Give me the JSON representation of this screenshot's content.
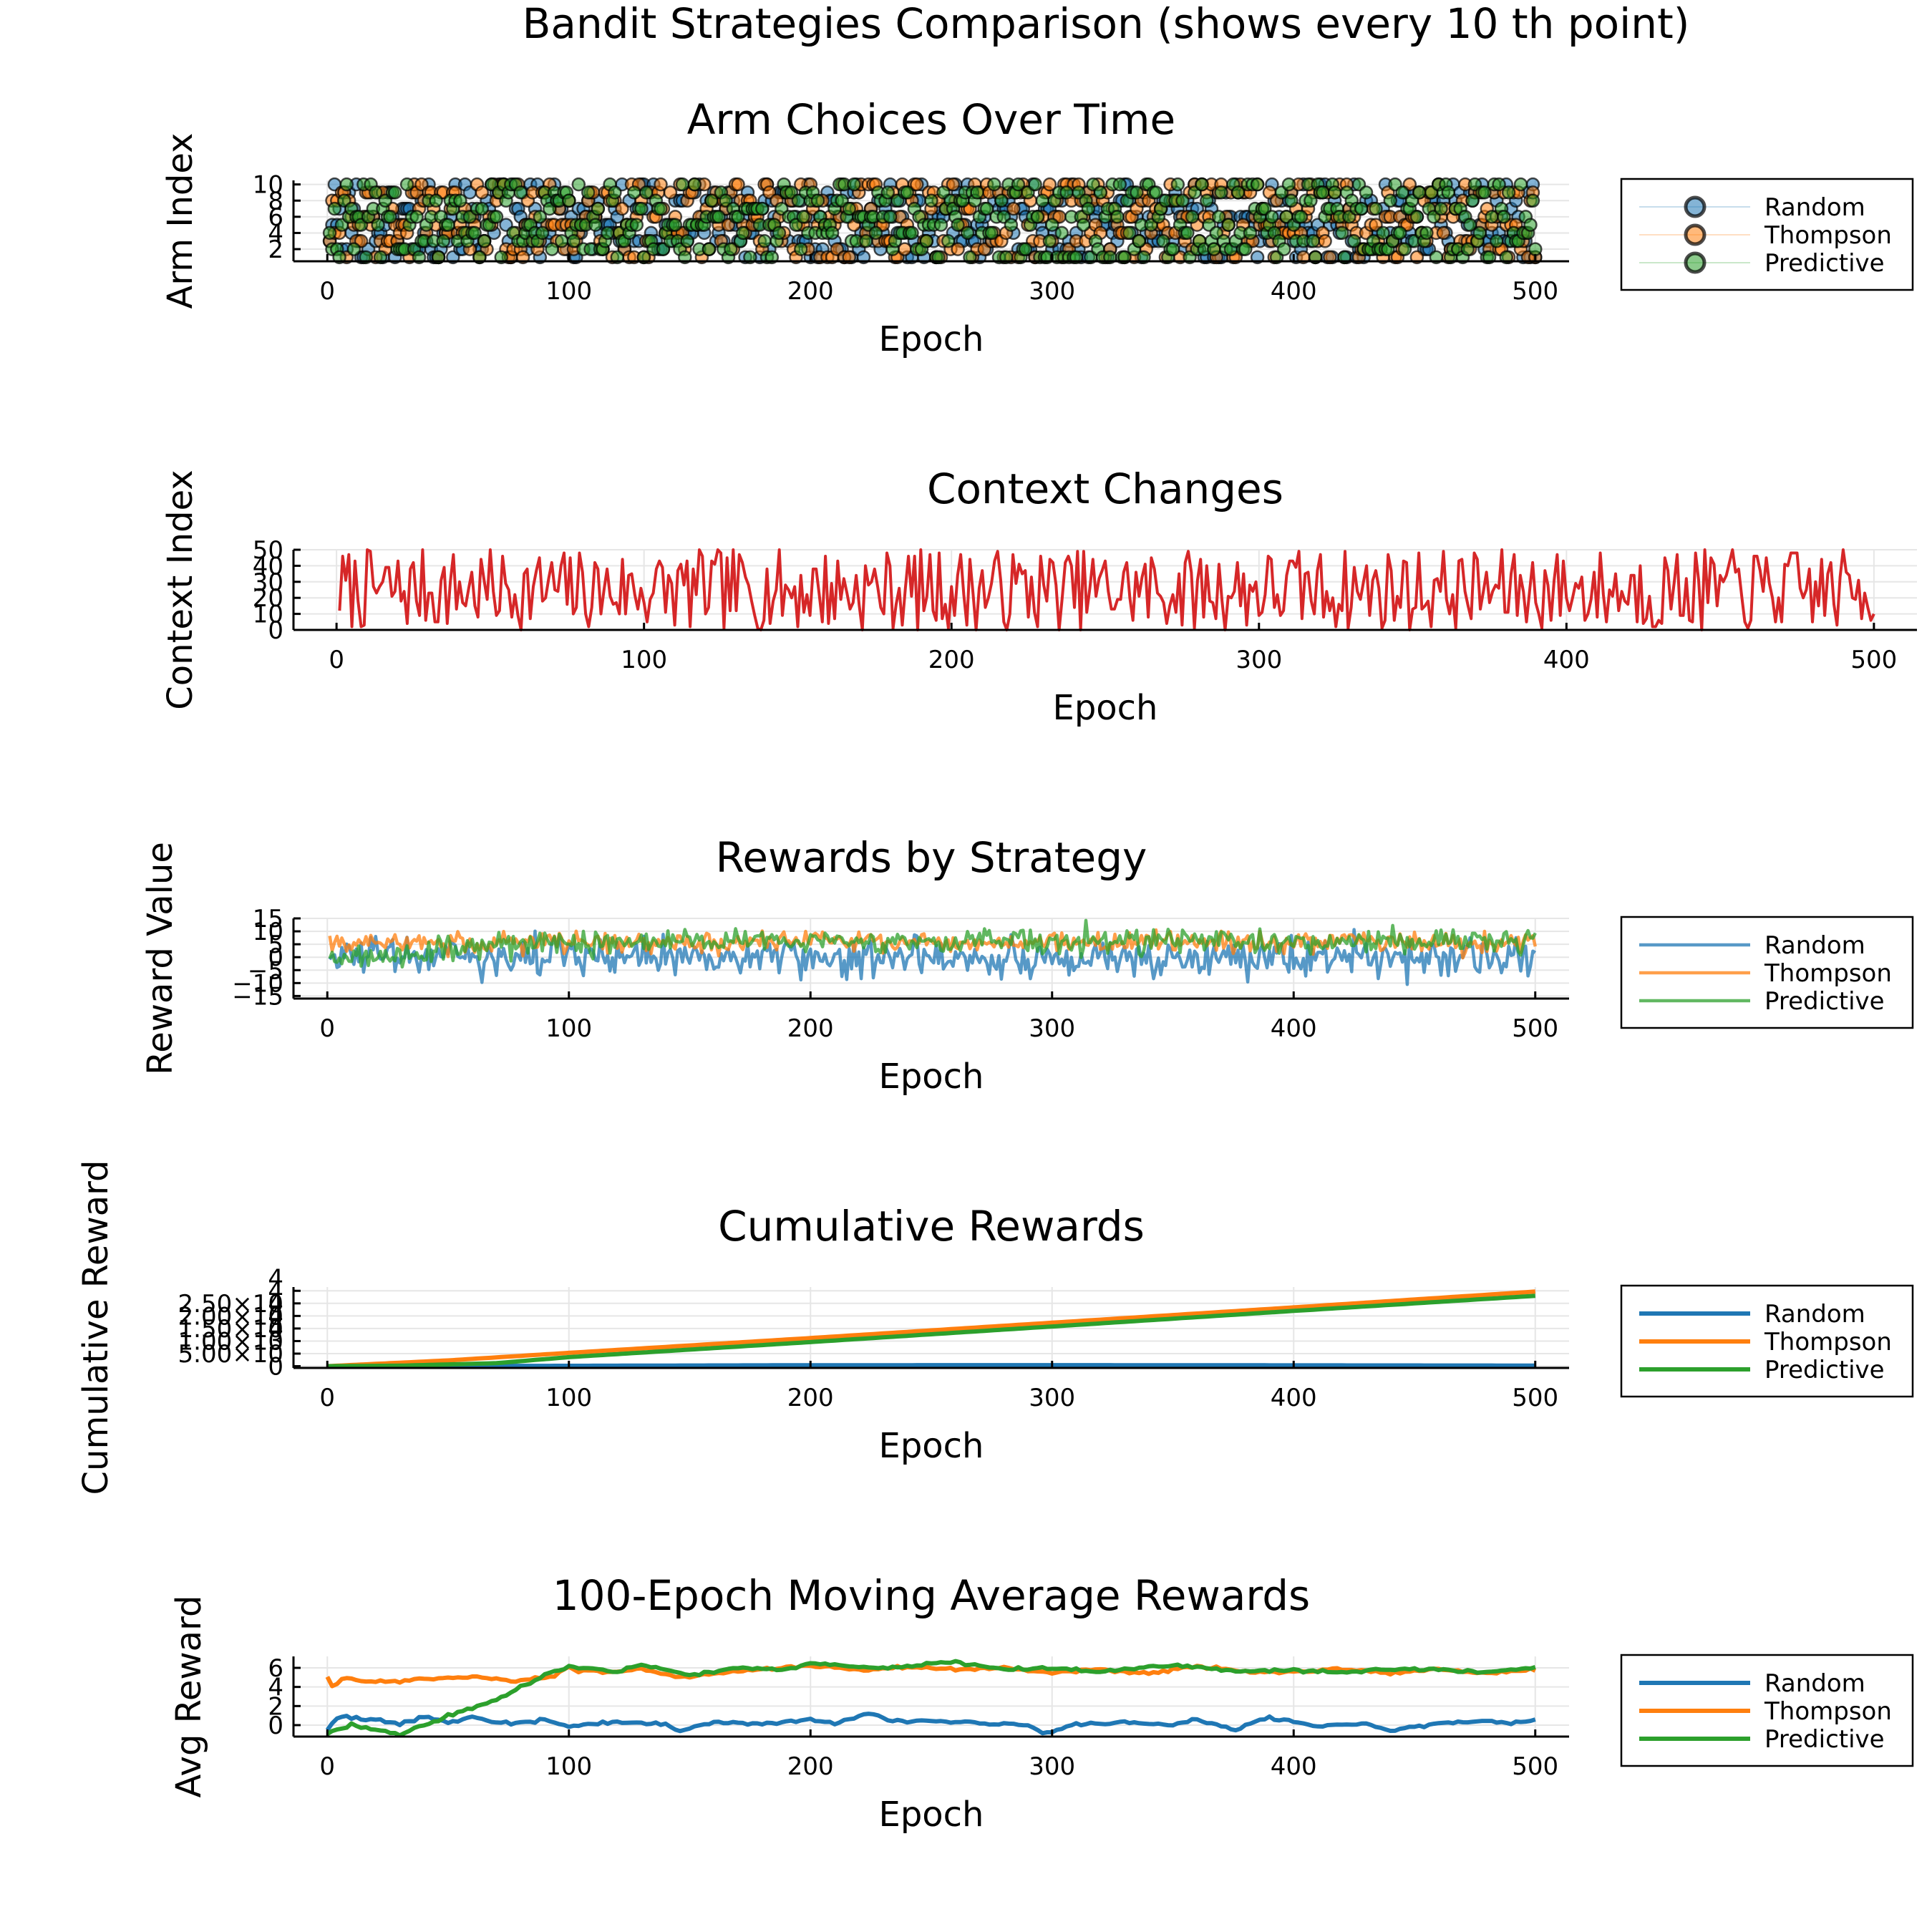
{
  "figure_title": "Bandit Strategies Comparison (shows every 10 th point)",
  "colors": {
    "random": "#1f77b4",
    "thompson": "#ff7f0e",
    "predictive": "#2ca02c",
    "context": "#d62728"
  },
  "chart_data": [
    {
      "id": "arms",
      "type": "scatter",
      "title": "Arm Choices Over Time",
      "xlabel": "Epoch",
      "ylabel": "Arm Index",
      "xlim": [
        -14,
        514
      ],
      "ylim": [
        0.5,
        10.5
      ],
      "xticks": [
        0,
        100,
        200,
        300,
        400,
        500
      ],
      "yticks": [
        2,
        4,
        6,
        8,
        10
      ],
      "grid": true,
      "legend": "outside-right",
      "series": [
        {
          "name": "Random",
          "color": "#1f77b4"
        },
        {
          "name": "Thompson",
          "color": "#ff7f0e"
        },
        {
          "name": "Predictive",
          "color": "#2ca02c"
        }
      ]
    },
    {
      "id": "context",
      "type": "line",
      "title": "Context Changes",
      "xlabel": "Epoch",
      "ylabel": "Context Index",
      "xlim": [
        -14,
        514
      ],
      "ylim": [
        0,
        50
      ],
      "xticks": [
        0,
        100,
        200,
        300,
        400,
        500
      ],
      "yticks": [
        0,
        10,
        20,
        30,
        40,
        50
      ],
      "grid": true,
      "legend": "none"
    },
    {
      "id": "rewards",
      "type": "line",
      "title": "Rewards by Strategy",
      "xlabel": "Epoch",
      "ylabel": "Reward Value",
      "xlim": [
        -14,
        514
      ],
      "ylim": [
        -16,
        15
      ],
      "xticks": [
        0,
        100,
        200,
        300,
        400,
        500
      ],
      "ytick_labels": [
        "15",
        "10",
        "5",
        "0",
        "−5",
        "−10",
        "−15"
      ],
      "yticks": [
        15,
        10,
        5,
        0,
        -5,
        -10,
        -15
      ],
      "grid": true,
      "legend": "outside-right",
      "series": [
        {
          "name": "Random",
          "color": "#1f77b4"
        },
        {
          "name": "Thompson",
          "color": "#ff7f0e"
        },
        {
          "name": "Predictive",
          "color": "#2ca02c"
        }
      ]
    },
    {
      "id": "cumulative",
      "type": "line",
      "title": "Cumulative Rewards",
      "xlabel": "Epoch",
      "ylabel": "Cumulative Reward",
      "xlim": [
        -14,
        514
      ],
      "ylim": [
        -700,
        31500
      ],
      "xticks": [
        0,
        100,
        200,
        300,
        400,
        500
      ],
      "yticks": [
        0,
        5000,
        10000,
        15000,
        20000,
        25000,
        30000
      ],
      "ytick_labels": [
        "0",
        "5.00×10",
        "1.00×10",
        "1.50×10",
        "2.00×10",
        "2.50×10",
        ""
      ],
      "ytick_exponents": [
        "",
        "3",
        "4",
        "4",
        "4",
        "4",
        "4"
      ],
      "grid": true,
      "legend": "outside-right",
      "series": [
        {
          "name": "Random",
          "color": "#1f77b4",
          "points": [
            [
              0,
              0
            ],
            [
              100,
              150
            ],
            [
              200,
              380
            ],
            [
              300,
              420
            ],
            [
              400,
              330
            ],
            [
              500,
              240
            ]
          ]
        },
        {
          "name": "Thompson",
          "color": "#ff7f0e",
          "points": [
            [
              0,
              0
            ],
            [
              50,
              2300
            ],
            [
              100,
              5300
            ],
            [
              200,
              11200
            ],
            [
              300,
              17300
            ],
            [
              400,
              23400
            ],
            [
              500,
              29700
            ]
          ]
        },
        {
          "name": "Predictive",
          "color": "#2ca02c",
          "points": [
            [
              0,
              0
            ],
            [
              30,
              200
            ],
            [
              70,
              1200
            ],
            [
              100,
              3600
            ],
            [
              200,
              9600
            ],
            [
              300,
              15800
            ],
            [
              400,
              22000
            ],
            [
              500,
              28000
            ]
          ]
        }
      ]
    },
    {
      "id": "movavg",
      "type": "line",
      "title": "100-Epoch Moving Average Rewards",
      "xlabel": "Epoch",
      "ylabel": "Avg Reward",
      "xlim": [
        -14,
        514
      ],
      "ylim": [
        -1.2,
        7.2
      ],
      "xticks": [
        0,
        100,
        200,
        300,
        400,
        500
      ],
      "yticks": [
        0,
        2,
        4,
        6
      ],
      "grid": true,
      "legend": "outside-right",
      "series": [
        {
          "name": "Random",
          "color": "#1f77b4",
          "points": [
            [
              0,
              -0.5
            ],
            [
              5,
              1.0
            ],
            [
              10,
              0.7
            ],
            [
              20,
              0.6
            ],
            [
              30,
              0.1
            ],
            [
              40,
              0.9
            ],
            [
              50,
              0.3
            ],
            [
              60,
              0.8
            ],
            [
              70,
              0.3
            ],
            [
              80,
              0.2
            ],
            [
              90,
              0.5
            ],
            [
              100,
              -0.1
            ],
            [
              120,
              0.3
            ],
            [
              140,
              0.1
            ],
            [
              145,
              -0.6
            ],
            [
              160,
              0.3
            ],
            [
              180,
              0.1
            ],
            [
              200,
              0.6
            ],
            [
              210,
              0.2
            ],
            [
              220,
              1.0
            ],
            [
              225,
              1.3
            ],
            [
              235,
              0.4
            ],
            [
              250,
              0.5
            ],
            [
              270,
              0.2
            ],
            [
              290,
              0.1
            ],
            [
              297,
              -0.9
            ],
            [
              310,
              0.1
            ],
            [
              330,
              0.3
            ],
            [
              350,
              0.0
            ],
            [
              360,
              0.6
            ],
            [
              375,
              -0.5
            ],
            [
              390,
              0.8
            ],
            [
              410,
              -0.1
            ],
            [
              430,
              0.2
            ],
            [
              440,
              -0.6
            ],
            [
              460,
              0.2
            ],
            [
              480,
              0.5
            ],
            [
              490,
              0.2
            ],
            [
              500,
              0.6
            ]
          ]
        },
        {
          "name": "Thompson",
          "color": "#ff7f0e",
          "points": [
            [
              0,
              5.0
            ],
            [
              3,
              3.8
            ],
            [
              5,
              5.0
            ],
            [
              20,
              4.5
            ],
            [
              40,
              4.8
            ],
            [
              60,
              5.1
            ],
            [
              80,
              4.6
            ],
            [
              90,
              5.0
            ],
            [
              100,
              5.9
            ],
            [
              120,
              5.5
            ],
            [
              130,
              5.9
            ],
            [
              145,
              4.9
            ],
            [
              160,
              5.4
            ],
            [
              180,
              5.9
            ],
            [
              200,
              6.2
            ],
            [
              220,
              5.8
            ],
            [
              240,
              6.1
            ],
            [
              260,
              5.8
            ],
            [
              280,
              6.0
            ],
            [
              300,
              5.5
            ],
            [
              320,
              5.8
            ],
            [
              340,
              5.4
            ],
            [
              360,
              6.2
            ],
            [
              380,
              5.6
            ],
            [
              400,
              5.6
            ],
            [
              420,
              5.9
            ],
            [
              440,
              5.4
            ],
            [
              460,
              5.9
            ],
            [
              480,
              5.4
            ],
            [
              500,
              5.8
            ]
          ]
        },
        {
          "name": "Predictive",
          "color": "#2ca02c",
          "points": [
            [
              0,
              -1.0
            ],
            [
              5,
              -0.4
            ],
            [
              10,
              0.0
            ],
            [
              20,
              -0.5
            ],
            [
              30,
              -1.0
            ],
            [
              40,
              0.1
            ],
            [
              50,
              1.0
            ],
            [
              60,
              1.8
            ],
            [
              70,
              2.6
            ],
            [
              80,
              4.0
            ],
            [
              90,
              5.2
            ],
            [
              100,
              6.2
            ],
            [
              120,
              5.6
            ],
            [
              130,
              6.3
            ],
            [
              150,
              5.3
            ],
            [
              170,
              6.0
            ],
            [
              190,
              5.8
            ],
            [
              200,
              6.5
            ],
            [
              230,
              5.9
            ],
            [
              260,
              6.6
            ],
            [
              280,
              5.8
            ],
            [
              300,
              6.0
            ],
            [
              320,
              5.6
            ],
            [
              350,
              6.3
            ],
            [
              380,
              5.6
            ],
            [
              400,
              5.8
            ],
            [
              420,
              5.5
            ],
            [
              440,
              5.9
            ],
            [
              460,
              5.8
            ],
            [
              480,
              5.5
            ],
            [
              500,
              6.0
            ]
          ]
        }
      ]
    }
  ]
}
